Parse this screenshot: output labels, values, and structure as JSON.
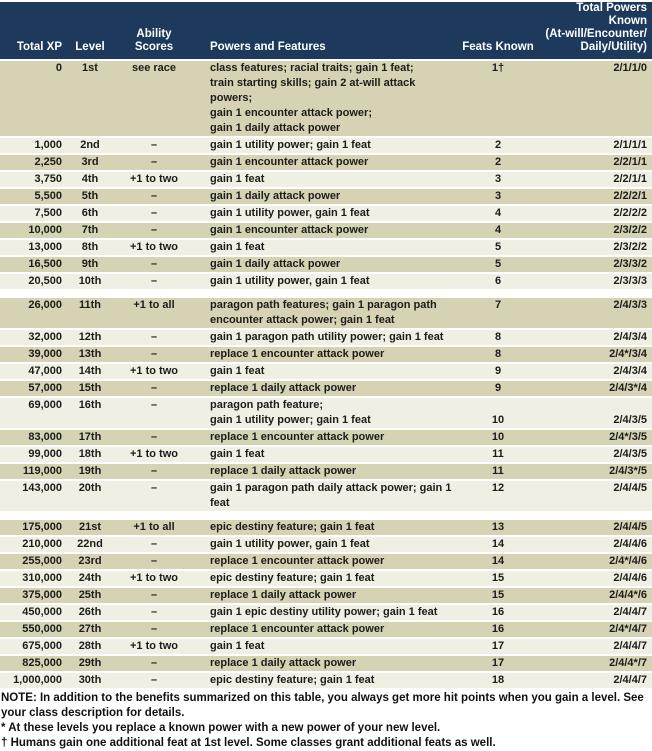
{
  "colors": {
    "header_bg": "#1d3a5c",
    "header_text": "#ffffff",
    "row_tan": "#d6d3b4",
    "row_light": "#f0efe3",
    "body_text": "#1c1c1c"
  },
  "table": {
    "header": {
      "total_xp": "Total XP",
      "level": "Level",
      "ability_line1": "Ability",
      "ability_line2": "Scores",
      "powers": "Powers and Features",
      "feats": "Feats Known",
      "known_line1": "Total Powers Known",
      "known_line2": "(At-will/Encounter/",
      "known_line3": "Daily/Utility)"
    },
    "tiers": [
      {
        "rows": [
          {
            "xp": "0",
            "level": "1st",
            "ability": "see race",
            "powers": [
              "class features; racial traits; gain 1 feat;",
              "train starting skills; gain 2 at-will attack powers;",
              "gain 1 encounter attack power;",
              "gain 1 daily attack power"
            ],
            "feats": "1†",
            "known": "2/1/1/0"
          },
          {
            "xp": "1,000",
            "level": "2nd",
            "ability": "–",
            "powers": [
              "gain 1 utility power; gain 1 feat"
            ],
            "feats": "2",
            "known": "2/1/1/1"
          },
          {
            "xp": "2,250",
            "level": "3rd",
            "ability": "–",
            "powers": [
              "gain 1 encounter attack power"
            ],
            "feats": "2",
            "known": "2/2/1/1"
          },
          {
            "xp": "3,750",
            "level": "4th",
            "ability": "+1 to two",
            "powers": [
              "gain 1 feat"
            ],
            "feats": "3",
            "known": "2/2/1/1"
          },
          {
            "xp": "5,500",
            "level": "5th",
            "ability": "–",
            "powers": [
              "gain 1 daily attack power"
            ],
            "feats": "3",
            "known": "2/2/2/1"
          },
          {
            "xp": "7,500",
            "level": "6th",
            "ability": "–",
            "powers": [
              "gain 1 utility power, gain 1 feat"
            ],
            "feats": "4",
            "known": "2/2/2/2"
          },
          {
            "xp": "10,000",
            "level": "7th",
            "ability": "–",
            "powers": [
              "gain 1 encounter attack power"
            ],
            "feats": "4",
            "known": "2/3/2/2"
          },
          {
            "xp": "13,000",
            "level": "8th",
            "ability": "+1 to two",
            "powers": [
              "gain 1 feat"
            ],
            "feats": "5",
            "known": "2/3/2/2"
          },
          {
            "xp": "16,500",
            "level": "9th",
            "ability": "–",
            "powers": [
              "gain 1 daily attack power"
            ],
            "feats": "5",
            "known": "2/3/3/2"
          },
          {
            "xp": "20,500",
            "level": "10th",
            "ability": "–",
            "powers": [
              "gain 1 utility power, gain 1 feat"
            ],
            "feats": "6",
            "known": "2/3/3/3"
          }
        ]
      },
      {
        "rows": [
          {
            "xp": "26,000",
            "level": "11th",
            "ability": "+1 to all",
            "powers": [
              "paragon path features; gain 1 paragon path",
              "encounter attack power; gain 1 feat"
            ],
            "feats": "7",
            "known": "2/4/3/3"
          },
          {
            "xp": "32,000",
            "level": "12th",
            "ability": "–",
            "powers": [
              "gain 1 paragon path utility power; gain 1 feat"
            ],
            "feats": "8",
            "known": "2/4/3/4"
          },
          {
            "xp": "39,000",
            "level": "13th",
            "ability": "–",
            "powers": [
              "replace 1 encounter attack power"
            ],
            "feats": "8",
            "known": "2/4*/3/4"
          },
          {
            "xp": "47,000",
            "level": "14th",
            "ability": "+1 to two",
            "powers": [
              "gain 1 feat"
            ],
            "feats": "9",
            "known": "2/4/3/4"
          },
          {
            "xp": "57,000",
            "level": "15th",
            "ability": "–",
            "powers": [
              "replace 1 daily attack power"
            ],
            "feats": "9",
            "known": "2/4/3*/4"
          },
          {
            "xp": "69,000",
            "level": "16th",
            "ability": "–",
            "powers": [
              "paragon path feature;",
              "gain 1 utility power; gain 1 feat"
            ],
            "feats": "10",
            "known": "2/4/3/5",
            "values_on_last_line": true
          },
          {
            "xp": "83,000",
            "level": "17th",
            "ability": "–",
            "powers": [
              "replace 1 encounter attack power"
            ],
            "feats": "10",
            "known": "2/4*/3/5"
          },
          {
            "xp": "99,000",
            "level": "18th",
            "ability": "+1 to two",
            "powers": [
              "gain 1 feat"
            ],
            "feats": "11",
            "known": "2/4/3/5"
          },
          {
            "xp": "119,000",
            "level": "19th",
            "ability": "–",
            "powers": [
              "replace 1 daily attack power"
            ],
            "feats": "11",
            "known": "2/4/3*/5"
          },
          {
            "xp": "143,000",
            "level": "20th",
            "ability": "–",
            "powers": [
              "gain 1 paragon path daily attack power; gain 1 feat"
            ],
            "feats": "12",
            "known": "2/4/4/5"
          }
        ]
      },
      {
        "rows": [
          {
            "xp": "175,000",
            "level": "21st",
            "ability": "+1 to all",
            "powers": [
              "epic destiny feature; gain 1 feat"
            ],
            "feats": "13",
            "known": "2/4/4/5"
          },
          {
            "xp": "210,000",
            "level": "22nd",
            "ability": "–",
            "powers": [
              "gain 1 utility power, gain 1 feat"
            ],
            "feats": "14",
            "known": "2/4/4/6"
          },
          {
            "xp": "255,000",
            "level": "23rd",
            "ability": "–",
            "powers": [
              "replace 1 encounter attack power"
            ],
            "feats": "14",
            "known": "2/4*/4/6"
          },
          {
            "xp": "310,000",
            "level": "24th",
            "ability": "+1 to two",
            "powers": [
              "epic destiny feature; gain 1 feat"
            ],
            "feats": "15",
            "known": "2/4/4/6"
          },
          {
            "xp": "375,000",
            "level": "25th",
            "ability": "–",
            "powers": [
              "replace 1 daily attack power"
            ],
            "feats": "15",
            "known": "2/4/4*/6"
          },
          {
            "xp": "450,000",
            "level": "26th",
            "ability": "–",
            "powers": [
              "gain 1 epic destiny utility power; gain 1 feat"
            ],
            "feats": "16",
            "known": "2/4/4/7"
          },
          {
            "xp": "550,000",
            "level": "27th",
            "ability": "–",
            "powers": [
              "replace 1 encounter attack power"
            ],
            "feats": "16",
            "known": "2/4*/4/7"
          },
          {
            "xp": "675,000",
            "level": "28th",
            "ability": "+1 to two",
            "powers": [
              "gain 1 feat"
            ],
            "feats": "17",
            "known": "2/4/4/7"
          },
          {
            "xp": "825,000",
            "level": "29th",
            "ability": "–",
            "powers": [
              "replace 1 daily attack power"
            ],
            "feats": "17",
            "known": "2/4/4*/7"
          },
          {
            "xp": "1,000,000",
            "level": "30th",
            "ability": "–",
            "powers": [
              "epic destiny feature; gain 1 feat"
            ],
            "feats": "18",
            "known": "2/4/4/7"
          }
        ]
      }
    ]
  },
  "notes": {
    "main": "NOTE: In addition to the benefits summarized on this table, you always get more hit points when you gain a level. See your class description for details.",
    "asterisk": "* At these levels you replace a known power with a new power of your new level.",
    "dagger": "† Humans gain one additional feat at 1st level. Some classes grant additional feats as well."
  }
}
